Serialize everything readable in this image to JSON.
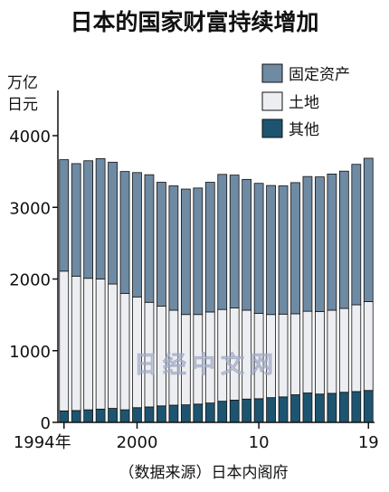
{
  "title": "日本的国家财富持续增加",
  "source": "（数据来源）日本内阁府",
  "watermark": "日经中文网",
  "chart_data": {
    "type": "bar",
    "stacked": true,
    "unit_label_lines": [
      "万亿",
      "日元"
    ],
    "ylim": [
      0,
      4000
    ],
    "yticks": [
      0,
      1000,
      2000,
      3000,
      4000
    ],
    "categories": [
      "1994",
      "1995",
      "1996",
      "1997",
      "1998",
      "1999",
      "2000",
      "2001",
      "2002",
      "2003",
      "2004",
      "2005",
      "2006",
      "2007",
      "2008",
      "2009",
      "2010",
      "2011",
      "2012",
      "2013",
      "2014",
      "2015",
      "2016",
      "2017",
      "2018",
      "2019"
    ],
    "xtick_labels": [
      {
        "category": "1994",
        "label": "1994年"
      },
      {
        "category": "2000",
        "label": "2000"
      },
      {
        "category": "2010",
        "label": "10"
      },
      {
        "category": "2019",
        "label": "19"
      }
    ],
    "legend": {
      "placement": "top-right"
    },
    "series": [
      {
        "name": "其他",
        "color": "#1d5570",
        "values": [
          160,
          165,
          175,
          185,
          195,
          175,
          205,
          215,
          230,
          240,
          245,
          255,
          270,
          295,
          310,
          325,
          330,
          345,
          355,
          385,
          410,
          395,
          405,
          420,
          430,
          445
        ]
      },
      {
        "name": "土地",
        "color": "#eceef2",
        "values": [
          1950,
          1875,
          1835,
          1815,
          1735,
          1625,
          1545,
          1460,
          1390,
          1325,
          1260,
          1250,
          1270,
          1280,
          1285,
          1240,
          1190,
          1160,
          1155,
          1130,
          1140,
          1150,
          1160,
          1170,
          1210,
          1240
        ]
      },
      {
        "name": "固定资产",
        "color": "#6f8aa3",
        "values": [
          1555,
          1570,
          1640,
          1680,
          1700,
          1700,
          1735,
          1780,
          1730,
          1735,
          1750,
          1765,
          1810,
          1885,
          1855,
          1825,
          1815,
          1800,
          1790,
          1830,
          1880,
          1880,
          1900,
          1915,
          1960,
          2000
        ]
      }
    ]
  }
}
